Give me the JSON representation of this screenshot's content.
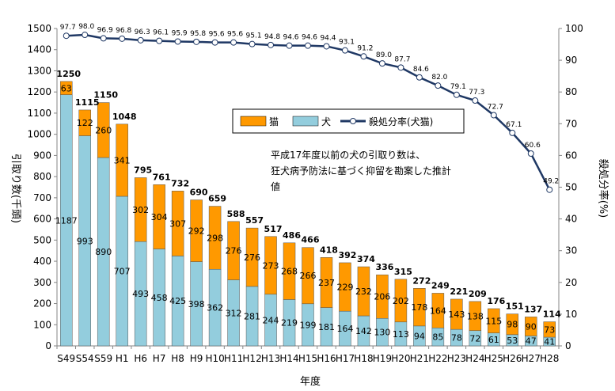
{
  "chart_data": {
    "type": "bar",
    "stacked": true,
    "categories": [
      "S49",
      "S54",
      "S59",
      "H1",
      "H6",
      "H7",
      "H8",
      "H9",
      "H10",
      "H11",
      "H12",
      "H13",
      "H14",
      "H15",
      "H16",
      "H17",
      "H18",
      "H19",
      "H20",
      "H21",
      "H22",
      "H23",
      "H24",
      "H25",
      "H26",
      "H27",
      "H28"
    ],
    "series": [
      {
        "name": "犬",
        "color": "#93cddd",
        "values": [
          1187,
          993,
          890,
          707,
          493,
          458,
          425,
          398,
          362,
          312,
          281,
          244,
          219,
          199,
          181,
          164,
          142,
          130,
          113,
          94,
          85,
          78,
          72,
          61,
          53,
          47,
          41
        ]
      },
      {
        "name": "猫",
        "color": "#ff9900",
        "values": [
          63,
          122,
          260,
          341,
          302,
          304,
          307,
          292,
          298,
          276,
          276,
          273,
          268,
          266,
          237,
          229,
          232,
          206,
          202,
          178,
          164,
          143,
          138,
          115,
          98,
          90,
          73
        ]
      }
    ],
    "totals": [
      1250,
      1115,
      1150,
      1048,
      795,
      761,
      732,
      690,
      659,
      588,
      557,
      517,
      486,
      466,
      418,
      392,
      374,
      336,
      315,
      272,
      249,
      221,
      209,
      176,
      151,
      137,
      114
    ],
    "line_series": {
      "name": "殺処分率(犬猫)",
      "color": "#1f3864",
      "values": [
        97.7,
        98.0,
        96.9,
        96.8,
        96.3,
        96.1,
        95.9,
        95.8,
        95.6,
        95.6,
        95.1,
        94.8,
        94.6,
        94.6,
        94.4,
        93.1,
        91.2,
        89.0,
        87.7,
        84.6,
        82.0,
        79.1,
        77.3,
        72.7,
        67.1,
        60.6,
        49.2
      ]
    },
    "xlabel": "年度",
    "ylabel": "引取り数(千頭)",
    "y2label": "殺処分率(%)",
    "ylim": [
      0,
      1500
    ],
    "y2lim": [
      0,
      100
    ],
    "yticks": [
      0,
      100,
      200,
      300,
      400,
      500,
      600,
      700,
      800,
      900,
      1000,
      1100,
      1200,
      1300,
      1400,
      1500
    ],
    "y2ticks": [
      0,
      10,
      20,
      30,
      40,
      50,
      60,
      70,
      80,
      90,
      100
    ],
    "legend_position": "top-center",
    "annotation": [
      "平成17年度以前の犬の引取り数は、",
      "狂犬病予防法に基づく抑留を勘案した推計",
      "値"
    ],
    "grid": false
  }
}
